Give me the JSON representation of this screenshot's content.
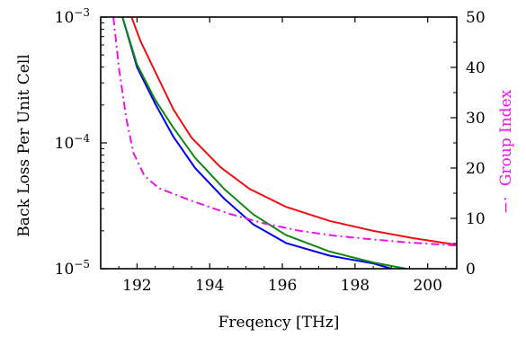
{
  "chart_data": {
    "type": "line",
    "xlabel": "Freqency [THz]",
    "ylabel_left": "Back Loss Per Unit Cell",
    "ylabel_right": "Group Index",
    "ylabel_right_marker": "−·",
    "xlim": [
      191.0,
      200.8
    ],
    "ylim_left": [
      1e-05,
      0.001
    ],
    "ylim_left_scale": "log",
    "ylim_right": [
      0,
      50
    ],
    "x_ticks": [
      192,
      194,
      196,
      198,
      200
    ],
    "y_left_ticks": [
      {
        "value": 1e-05,
        "base": "10",
        "exp": "−5"
      },
      {
        "value": 0.0001,
        "base": "10",
        "exp": "−4"
      },
      {
        "value": 0.001,
        "base": "10",
        "exp": "−3"
      }
    ],
    "y_right_ticks": [
      0,
      10,
      20,
      30,
      40,
      50
    ],
    "grid": false,
    "series": [
      {
        "axis": "left",
        "color": "#ee1111",
        "style": "solid",
        "x": [
          191.85,
          192.1,
          192.6,
          193.0,
          193.5,
          194.3,
          195.1,
          196.1,
          197.3,
          198.5,
          199.6,
          200.8
        ],
        "y": [
          0.001,
          0.00064,
          0.00032,
          0.000185,
          0.00011,
          6.4e-05,
          4.3e-05,
          3.1e-05,
          2.4e-05,
          2e-05,
          1.75e-05,
          1.55e-05
        ]
      },
      {
        "axis": "left",
        "color": "#0000ee",
        "style": "solid",
        "x": [
          191.6,
          192.0,
          192.5,
          193.0,
          193.6,
          194.4,
          195.2,
          196.1,
          197.3,
          198.5,
          199.0
        ],
        "y": [
          0.001,
          0.0004,
          0.000205,
          0.000112,
          6.3e-05,
          3.6e-05,
          2.25e-05,
          1.6e-05,
          1.27e-05,
          1.1e-05,
          1e-05
        ]
      },
      {
        "axis": "left",
        "color": "#118811",
        "style": "solid",
        "x": [
          191.6,
          192.0,
          192.5,
          193.0,
          193.6,
          194.4,
          195.2,
          196.1,
          197.3,
          198.5,
          199.4
        ],
        "y": [
          0.001,
          0.00042,
          0.00022,
          0.000132,
          7.6e-05,
          4.3e-05,
          2.7e-05,
          1.85e-05,
          1.37e-05,
          1.12e-05,
          1e-05
        ]
      },
      {
        "axis": "right",
        "color": "#ee11ee",
        "style": "dashdot",
        "x": [
          191.35,
          191.5,
          191.7,
          191.9,
          192.2,
          192.6,
          193.5,
          194.5,
          195.5,
          196.5,
          197.5,
          198.5,
          199.5,
          200.8
        ],
        "y": [
          50,
          40,
          30,
          23,
          18.5,
          16,
          13.5,
          11,
          9,
          7.5,
          6.5,
          5.8,
          5.2,
          4.6
        ]
      }
    ]
  }
}
